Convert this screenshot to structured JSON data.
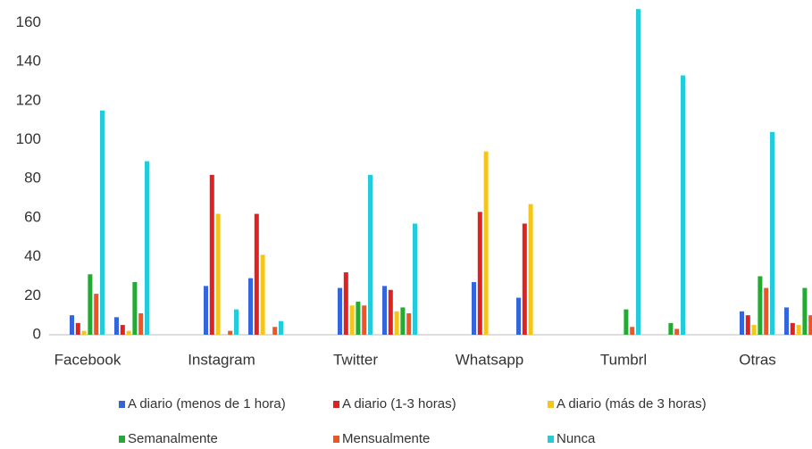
{
  "chart_data": {
    "type": "bar",
    "categories": [
      "Facebook",
      null,
      "Instagram",
      null,
      "Twitter",
      null,
      "Whatsapp",
      null,
      "Tumbrl",
      null,
      "Otras",
      null
    ],
    "series": [
      {
        "name": "A diario (menos de 1 hora)",
        "color": "#3366dd",
        "values": [
          10,
          9,
          25,
          29,
          24,
          25,
          27,
          19,
          0,
          0,
          12,
          14
        ]
      },
      {
        "name": "A diario (1-3 horas)",
        "color": "#dd2222",
        "values": [
          6,
          5,
          82,
          62,
          32,
          23,
          63,
          57,
          0,
          0,
          10,
          6
        ]
      },
      {
        "name": "A diario (más de 3 horas)",
        "color": "#f5c518",
        "values": [
          2,
          2,
          62,
          41,
          15,
          12,
          94,
          67,
          0,
          0,
          5,
          5
        ]
      },
      {
        "name": "Semanalmente",
        "color": "#22aa33",
        "values": [
          31,
          27,
          0,
          0,
          17,
          14,
          0,
          0,
          13,
          6,
          30,
          24
        ]
      },
      {
        "name": "Mensualmente",
        "color": "#ee5522",
        "values": [
          21,
          11,
          2,
          4,
          15,
          11,
          0,
          0,
          4,
          3,
          24,
          10
        ]
      },
      {
        "name": "Nunca",
        "color": "#22ccdd",
        "values": [
          115,
          89,
          13,
          7,
          82,
          57,
          0,
          0,
          167,
          133,
          104,
          null
        ]
      }
    ],
    "ylim": [
      0,
      168
    ],
    "yticks": [
      0,
      20,
      40,
      60,
      80,
      100,
      120,
      140,
      160
    ],
    "grid": false,
    "legend": "bottom"
  }
}
